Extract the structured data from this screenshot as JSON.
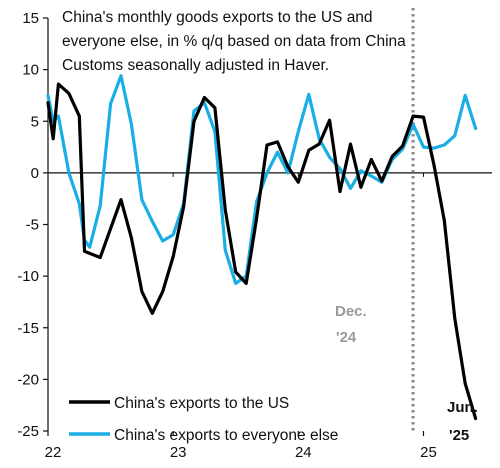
{
  "chart_data": {
    "type": "line",
    "title_lines": [
      "China's monthly goods exports to the US and",
      "everyone else, in % q/q based on data from China",
      "Customs seasonally adjusted in Haver."
    ],
    "ylim": [
      -25,
      15
    ],
    "yticks": [
      15,
      10,
      5,
      0,
      -5,
      -10,
      -15,
      -20,
      -25
    ],
    "xlim": [
      0,
      42
    ],
    "xticks": [
      {
        "label": "22",
        "x": 0
      },
      {
        "label": "23",
        "x": 12
      },
      {
        "label": "24",
        "x": 24
      },
      {
        "label": "25",
        "x": 36
      }
    ],
    "series": [
      {
        "name": "China's exports to the US",
        "color": "#000000",
        "x": [
          0,
          0.5,
          1,
          2,
          3,
          3.5,
          4,
          5,
          6,
          7,
          8,
          9,
          10,
          11,
          12,
          13,
          14,
          15,
          16,
          17,
          18,
          19,
          20,
          21,
          22,
          23,
          24,
          25,
          26,
          27,
          28,
          29,
          30,
          31,
          32,
          33,
          34,
          35,
          36,
          37,
          38,
          39,
          40,
          41
        ],
        "y": [
          6.8,
          3.3,
          8.6,
          7.7,
          5.5,
          -7.6,
          -7.8,
          -8.2,
          -5.4,
          -2.6,
          -6.3,
          -11.5,
          -13.6,
          -11.5,
          -8.1,
          -3.3,
          5.0,
          7.3,
          6.3,
          -3.6,
          -9.6,
          -10.7,
          -4.4,
          2.7,
          3.0,
          0.6,
          -0.9,
          2.2,
          2.8,
          5.1,
          -1.8,
          2.8,
          -1.4,
          1.3,
          -0.8,
          1.6,
          2.6,
          5.5,
          5.4,
          0.8,
          -4.6,
          -14.1,
          -20.4,
          -23.8
        ]
      },
      {
        "name": "China's exports to everyone else",
        "color": "#19aee6",
        "x": [
          0,
          0.5,
          1,
          2,
          3,
          3.5,
          4,
          5,
          6,
          7,
          8,
          9,
          10,
          11,
          12,
          13,
          14,
          15,
          16,
          17,
          18,
          19,
          20,
          21,
          22,
          23,
          24,
          25,
          26,
          27,
          28,
          29,
          30,
          31,
          32,
          33,
          34,
          35,
          36,
          37,
          38,
          39,
          40,
          41
        ],
        "y": [
          7.5,
          5.0,
          5.5,
          0.0,
          -3.0,
          -6.5,
          -7.2,
          -3.2,
          6.7,
          9.4,
          4.7,
          -2.6,
          -4.7,
          -6.6,
          -6.0,
          -3.0,
          6.0,
          6.8,
          4.0,
          -7.5,
          -10.7,
          -10.0,
          -2.8,
          0.0,
          2.0,
          0.0,
          4.0,
          7.6,
          3.3,
          1.5,
          0.4,
          -1.5,
          0.2,
          -0.3,
          -0.9,
          1.3,
          2.3,
          4.7,
          2.5,
          2.4,
          2.7,
          3.6,
          7.5,
          4.3
        ]
      }
    ],
    "vline": {
      "x": 35,
      "color": "#8c8c8c",
      "style": "dotted"
    },
    "annotations": [
      {
        "id": "dec",
        "lines": [
          "Dec.",
          "'24"
        ]
      },
      {
        "id": "jun",
        "lines": [
          "Jun.",
          "'25"
        ]
      }
    ],
    "legend": {
      "placement": "bottom-left"
    },
    "grid": false
  }
}
